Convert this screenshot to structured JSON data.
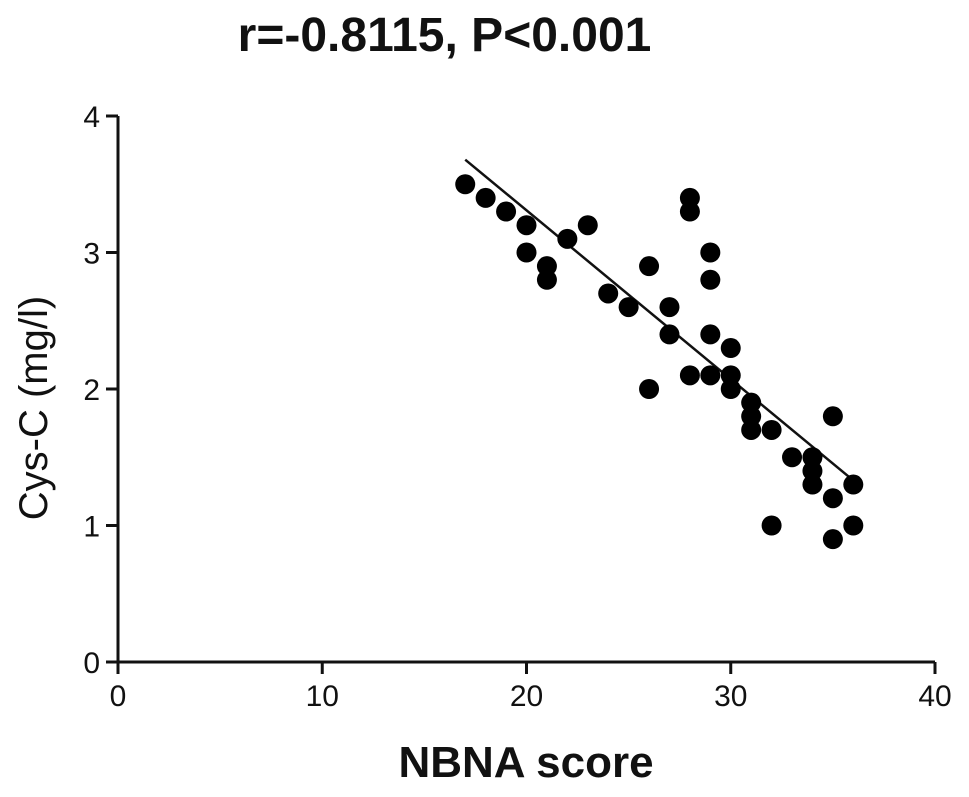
{
  "chart_data": {
    "type": "scatter",
    "title": "r=-0.8115, P<0.001",
    "xlabel": "NBNA score",
    "ylabel": "Cys-C  (mg/l)",
    "xlim": [
      0,
      40
    ],
    "ylim": [
      0,
      4
    ],
    "x_ticks": [
      "0",
      "10",
      "20",
      "30",
      "40"
    ],
    "y_ticks": [
      "0",
      "1",
      "2",
      "3",
      "4"
    ],
    "grid": false,
    "regression_line": {
      "x": [
        17,
        36
      ],
      "y": [
        3.68,
        1.33
      ]
    },
    "points": [
      {
        "x": 17,
        "y": 3.5
      },
      {
        "x": 18,
        "y": 3.4
      },
      {
        "x": 19,
        "y": 3.3
      },
      {
        "x": 20,
        "y": 3.2
      },
      {
        "x": 20,
        "y": 3.0
      },
      {
        "x": 21,
        "y": 2.9
      },
      {
        "x": 21,
        "y": 2.8
      },
      {
        "x": 22,
        "y": 3.1
      },
      {
        "x": 23,
        "y": 3.2
      },
      {
        "x": 24,
        "y": 2.7
      },
      {
        "x": 25,
        "y": 2.6
      },
      {
        "x": 26,
        "y": 2.9
      },
      {
        "x": 26,
        "y": 2.0
      },
      {
        "x": 27,
        "y": 2.6
      },
      {
        "x": 27,
        "y": 2.4
      },
      {
        "x": 28,
        "y": 3.4
      },
      {
        "x": 28,
        "y": 3.3
      },
      {
        "x": 28,
        "y": 2.1
      },
      {
        "x": 29,
        "y": 3.0
      },
      {
        "x": 29,
        "y": 2.8
      },
      {
        "x": 29,
        "y": 2.4
      },
      {
        "x": 29,
        "y": 2.1
      },
      {
        "x": 30,
        "y": 2.3
      },
      {
        "x": 30,
        "y": 2.1
      },
      {
        "x": 30,
        "y": 2.0
      },
      {
        "x": 31,
        "y": 1.9
      },
      {
        "x": 31,
        "y": 1.8
      },
      {
        "x": 31,
        "y": 1.7
      },
      {
        "x": 32,
        "y": 1.7
      },
      {
        "x": 32,
        "y": 1.0
      },
      {
        "x": 33,
        "y": 1.5
      },
      {
        "x": 34,
        "y": 1.5
      },
      {
        "x": 34,
        "y": 1.4
      },
      {
        "x": 34,
        "y": 1.3
      },
      {
        "x": 35,
        "y": 1.8
      },
      {
        "x": 35,
        "y": 1.2
      },
      {
        "x": 35,
        "y": 0.9
      },
      {
        "x": 36,
        "y": 1.3
      },
      {
        "x": 36,
        "y": 1.0
      }
    ],
    "marker_color": "#000000"
  }
}
